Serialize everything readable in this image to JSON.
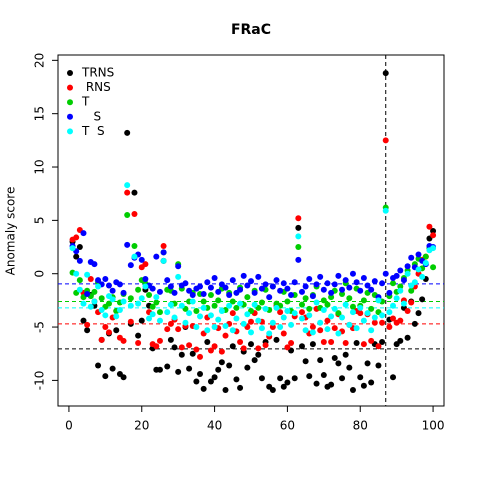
{
  "chart_data": {
    "type": "scatter",
    "title": "FRaC",
    "y_label": "Anomaly score",
    "xlim": [
      -3,
      103
    ],
    "ylim": [
      -12.4,
      20.5
    ],
    "xticks": [
      0,
      20,
      40,
      60,
      80,
      100
    ],
    "yticks": [
      -10,
      -5,
      0,
      5,
      10,
      15,
      20
    ],
    "x": [
      1,
      2,
      3,
      4,
      5,
      6,
      7,
      8,
      9,
      10,
      11,
      12,
      13,
      14,
      15,
      16,
      17,
      18,
      19,
      20,
      21,
      22,
      23,
      24,
      25,
      26,
      27,
      28,
      29,
      30,
      31,
      32,
      33,
      34,
      35,
      36,
      37,
      38,
      39,
      40,
      41,
      42,
      43,
      44,
      45,
      46,
      47,
      48,
      49,
      50,
      51,
      52,
      53,
      54,
      55,
      56,
      57,
      58,
      59,
      60,
      61,
      62,
      63,
      64,
      65,
      66,
      67,
      68,
      69,
      70,
      71,
      72,
      73,
      74,
      75,
      76,
      77,
      78,
      79,
      80,
      81,
      82,
      83,
      84,
      85,
      86,
      87,
      88,
      89,
      90,
      91,
      92,
      93,
      94,
      95,
      96,
      97,
      98,
      99,
      100
    ],
    "vline": 87,
    "legend": "top-left",
    "series": [
      {
        "name": "TRNS",
        "color": "#000000",
        "threshold": -7.05,
        "values": [
          3.0,
          1.6,
          2.5,
          -4.4,
          -5.3,
          -2.0,
          -3.0,
          -8.6,
          -6.2,
          -9.6,
          -5.6,
          -8.9,
          -5.3,
          -9.4,
          -9.7,
          13.2,
          -4.7,
          7.6,
          -5.8,
          -4.4,
          -1.5,
          -3.0,
          -7.0,
          -9.0,
          -9.0,
          1.2,
          -8.7,
          -6.2,
          -6.9,
          -9.2,
          -7.6,
          -5.0,
          -8.9,
          -7.5,
          -10.1,
          -9.4,
          -10.8,
          -6.4,
          -10.1,
          -9.7,
          -9.0,
          -8.3,
          -10.9,
          -8.6,
          -6.8,
          -9.9,
          -10.7,
          -7.3,
          -8.8,
          -6.6,
          -8.1,
          -7.6,
          -9.8,
          -6.4,
          -10.6,
          -10.9,
          -6.2,
          -9.8,
          -10.6,
          -10.2,
          -7.2,
          -9.8,
          4.3,
          -6.8,
          -8.2,
          -9.6,
          -6.6,
          -10.3,
          -8.1,
          -9.5,
          -10.6,
          -10.4,
          -7.9,
          -8.4,
          -9.8,
          -7.6,
          -8.8,
          -10.9,
          -6.5,
          -9.7,
          -10.5,
          -8.4,
          -10.2,
          -6.6,
          -8.6,
          -6.4,
          18.8,
          -4.3,
          -9.7,
          -6.6,
          -6.3,
          -3.2,
          -6.0,
          -2.6,
          -4.7,
          -3.7,
          -2.4,
          -0.5,
          3.3,
          4.0
        ]
      },
      {
        "name": " RNS",
        "color": "#ff0000",
        "threshold": -4.7,
        "values": [
          3.2,
          3.4,
          4.1,
          -1.8,
          -4.8,
          -0.5,
          -2.6,
          -3.6,
          -6.2,
          -5.0,
          -5.5,
          -4.1,
          -3.5,
          -6.0,
          -6.3,
          7.6,
          -4.5,
          5.6,
          -6.5,
          0.6,
          0.9,
          -3.6,
          -6.6,
          -6.8,
          -6.3,
          2.6,
          -5.2,
          -4.7,
          -4.3,
          -5.2,
          -6.9,
          -4.9,
          -6.7,
          -4.9,
          -7.1,
          -7.8,
          -5.6,
          -4.1,
          -7.2,
          -6.8,
          -5.1,
          -7.3,
          -5.8,
          -4.7,
          -3.7,
          -5.4,
          -6.4,
          -7.0,
          -5.0,
          -4.5,
          -3.7,
          -7.0,
          -4.5,
          -6.7,
          -5.9,
          -5.0,
          -3.0,
          -3.6,
          -5.6,
          -6.9,
          -6.5,
          -4.0,
          5.2,
          -3.6,
          -4.1,
          -5.6,
          -5.0,
          -3.3,
          -5.3,
          -6.4,
          -4.4,
          -6.4,
          -5.1,
          -3.8,
          -5.4,
          -6.5,
          -4.8,
          -5.1,
          -3.5,
          -3.7,
          -6.6,
          -3.8,
          -6.3,
          -4.6,
          -6.8,
          -4.6,
          12.5,
          -5.0,
          -4.2,
          -4.6,
          -4.4,
          -2.5,
          -3.5,
          -2.7,
          -1.2,
          0.0,
          1.3,
          1.6,
          4.4,
          3.6
        ]
      },
      {
        "name": "T",
        "color": "#00cd00",
        "threshold": -2.6,
        "values": [
          0.1,
          -1.8,
          -0.6,
          -2.2,
          -1.6,
          -2.1,
          -1.7,
          -0.8,
          -2.3,
          -3.1,
          -2.8,
          -2.2,
          -3.5,
          -2.7,
          -1.9,
          5.5,
          -2.3,
          2.6,
          -1.5,
          -0.6,
          -0.9,
          -2.0,
          -3.1,
          -2.7,
          -3.6,
          2.0,
          -1.5,
          -1.6,
          -2.8,
          0.9,
          -1.4,
          -3.3,
          -2.6,
          -1.8,
          -3.5,
          -1.9,
          -2.6,
          -3.2,
          -2.0,
          -3.0,
          -2.5,
          -1.4,
          -3.4,
          -1.8,
          -2.6,
          -3.2,
          -1.3,
          -2.9,
          -2.2,
          -3.5,
          -1.6,
          -3.2,
          -2.7,
          -1.5,
          -3.4,
          -1.2,
          -2.8,
          -3.0,
          -1.7,
          -2.6,
          -3.5,
          -2.0,
          2.5,
          -2.9,
          -2.3,
          -3.3,
          -2.0,
          -1.2,
          -3.2,
          -2.5,
          -2.9,
          -2.2,
          -1.6,
          -3.7,
          -1.9,
          -0.9,
          -2.3,
          -3.1,
          -1.4,
          -3.0,
          -2.5,
          -1.8,
          -3.3,
          -2.0,
          -3.6,
          -2.6,
          6.2,
          -2.1,
          -0.9,
          -1.7,
          -1.2,
          -0.4,
          0.3,
          -1.6,
          0.9,
          1.4,
          0.5,
          1.6,
          2.4,
          0.6
        ]
      },
      {
        "name": "   S",
        "color": "#0000ff",
        "threshold": -0.95,
        "values": [
          2.6,
          2.1,
          1.2,
          3.8,
          -1.9,
          1.1,
          0.9,
          -0.6,
          -1.0,
          -0.5,
          -1.1,
          -1.6,
          -0.8,
          -1.0,
          -1.8,
          2.7,
          0.8,
          1.5,
          1.8,
          1.3,
          -0.5,
          -1.1,
          -1.4,
          1.6,
          -1.7,
          2.0,
          -0.6,
          -1.2,
          -1.8,
          0.7,
          -1.1,
          -0.9,
          -1.6,
          -2.0,
          -1.4,
          -1.2,
          -1.9,
          -0.8,
          -1.3,
          -0.4,
          -1.7,
          -1.0,
          -1.3,
          -2.0,
          -0.6,
          -1.8,
          -1.5,
          -0.2,
          -1.1,
          -0.7,
          -1.8,
          -0.3,
          -1.4,
          -1.0,
          -2.2,
          -1.2,
          -0.6,
          -1.6,
          -0.9,
          -1.4,
          -2.0,
          -0.8,
          1.3,
          -1.7,
          -1.2,
          -0.5,
          -2.1,
          -1.0,
          -0.3,
          -1.5,
          -0.9,
          -1.8,
          -1.0,
          -0.2,
          -1.5,
          -0.6,
          -1.3,
          0.0,
          -0.8,
          -1.6,
          -0.4,
          -1.1,
          -1.5,
          -0.7,
          -2.2,
          -0.9,
          0.0,
          -1.8,
          -0.4,
          -0.2,
          0.3,
          -0.6,
          0.7,
          1.5,
          0.6,
          1.8,
          1.2,
          0.9,
          2.6,
          2.5
        ]
      },
      {
        "name": "T  S",
        "color": "#00ffff",
        "threshold": -3.2,
        "values": [
          2.4,
          0.0,
          -1.5,
          -2.8,
          -0.1,
          -3.1,
          -2.6,
          -1.2,
          -3.4,
          -3.9,
          -2.1,
          -2.4,
          -4.0,
          -3.4,
          -2.6,
          8.3,
          -3.0,
          1.6,
          -2.8,
          -2.3,
          -1.2,
          -4.2,
          -3.8,
          -2.2,
          -4.4,
          1.2,
          -3.6,
          -2.9,
          -4.1,
          -0.3,
          -3.0,
          -4.6,
          -3.7,
          -2.6,
          -5.0,
          -4.0,
          -3.2,
          -5.3,
          -3.9,
          -5.0,
          -4.3,
          -3.5,
          -4.9,
          -3.0,
          -5.3,
          -4.2,
          -2.8,
          -4.7,
          -3.8,
          -5.5,
          -2.9,
          -4.4,
          -5.1,
          -3.3,
          -5.6,
          -4.6,
          -3.2,
          -5.0,
          -4.1,
          -3.5,
          -4.8,
          -3.7,
          3.5,
          -4.2,
          -5.3,
          -3.9,
          -5.5,
          -2.7,
          -4.6,
          -3.4,
          -5.2,
          -4.0,
          -3.3,
          -5.6,
          -4.1,
          -2.9,
          -4.8,
          -3.6,
          -5.1,
          -3.2,
          -4.4,
          -3.7,
          -5.3,
          -4.1,
          -2.5,
          -3.9,
          5.9,
          -3.6,
          -3.0,
          -2.3,
          -1.6,
          -2.8,
          0.0,
          -1.1,
          -0.8,
          0.4,
          -0.3,
          1.0,
          2.2,
          2.4
        ]
      }
    ]
  }
}
